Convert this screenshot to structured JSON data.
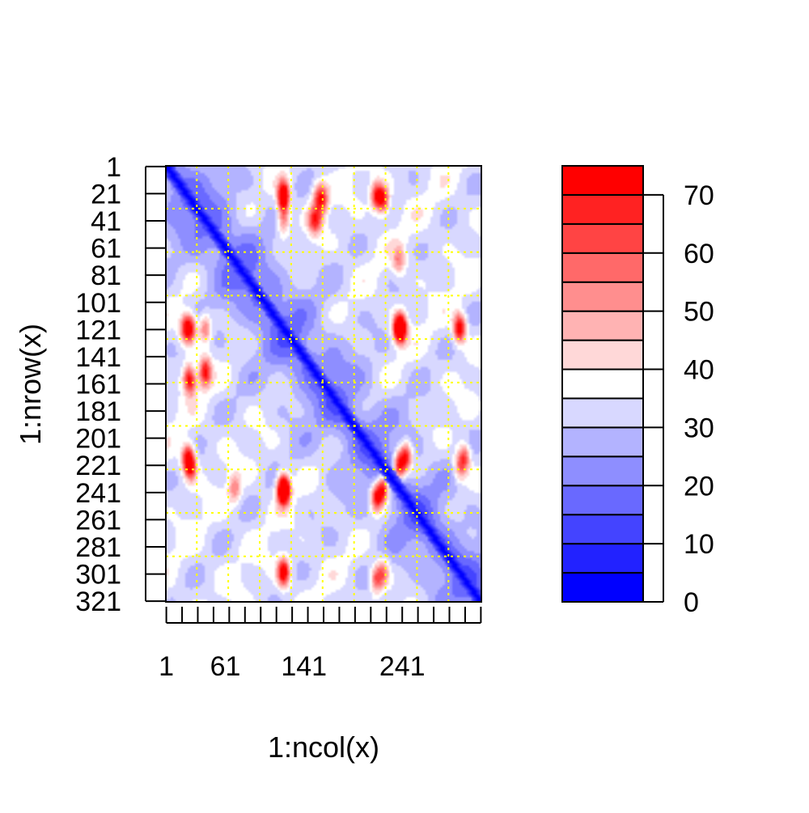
{
  "chart_data": {
    "type": "heatmap",
    "title": "",
    "xlabel": "1:ncol(x)",
    "ylabel": "1:nrow(x)",
    "n_rows": 321,
    "n_cols": 321,
    "x_tick_labels": [
      "1",
      "61",
      "141",
      "241"
    ],
    "y_tick_labels": [
      "1",
      "21",
      "41",
      "61",
      "81",
      "101",
      "121",
      "141",
      "161",
      "181",
      "201",
      "221",
      "241",
      "261",
      "281",
      "301",
      "321"
    ],
    "diagonal_value": 0,
    "hotspots": [
      {
        "row": 25,
        "col": 120,
        "value": 62
      },
      {
        "row": 25,
        "col": 160,
        "value": 58
      },
      {
        "row": 25,
        "col": 222,
        "value": 66
      },
      {
        "row": 40,
        "col": 150,
        "value": 52
      },
      {
        "row": 120,
        "col": 20,
        "value": 60
      },
      {
        "row": 120,
        "col": 40,
        "value": 55
      },
      {
        "row": 120,
        "col": 240,
        "value": 72
      },
      {
        "row": 120,
        "col": 300,
        "value": 55
      },
      {
        "row": 155,
        "col": 22,
        "value": 48
      },
      {
        "row": 155,
        "col": 40,
        "value": 48
      },
      {
        "row": 215,
        "col": 22,
        "value": 64
      },
      {
        "row": 215,
        "col": 245,
        "value": 70
      },
      {
        "row": 215,
        "col": 305,
        "value": 58
      },
      {
        "row": 238,
        "col": 120,
        "value": 70
      },
      {
        "row": 238,
        "col": 222,
        "value": 72
      },
      {
        "row": 238,
        "col": 70,
        "value": 50
      },
      {
        "row": 300,
        "col": 120,
        "value": 52
      },
      {
        "row": 300,
        "col": 222,
        "value": 52
      }
    ],
    "guide_lines": {
      "color": "#ffff00",
      "positions": [
        32,
        64,
        96,
        128,
        160,
        192,
        224,
        256,
        288
      ]
    },
    "color_scale": {
      "breaks": [
        0,
        5,
        10,
        15,
        20,
        25,
        30,
        35,
        40,
        45,
        50,
        55,
        60,
        65,
        70,
        75
      ],
      "colors": [
        "#0000ff",
        "#2222ff",
        "#4444ff",
        "#6969ff",
        "#8e8eff",
        "#b3b3ff",
        "#d8d8ff",
        "#ffffff",
        "#ffd8d8",
        "#ffb3b3",
        "#ff8e8e",
        "#ff6969",
        "#ff4444",
        "#ff2222",
        "#ff0000"
      ],
      "tick_values": [
        0,
        10,
        20,
        30,
        40,
        50,
        60,
        70
      ],
      "tick_labels": [
        "0",
        "10",
        "20",
        "30",
        "40",
        "50",
        "60",
        "70"
      ]
    }
  }
}
